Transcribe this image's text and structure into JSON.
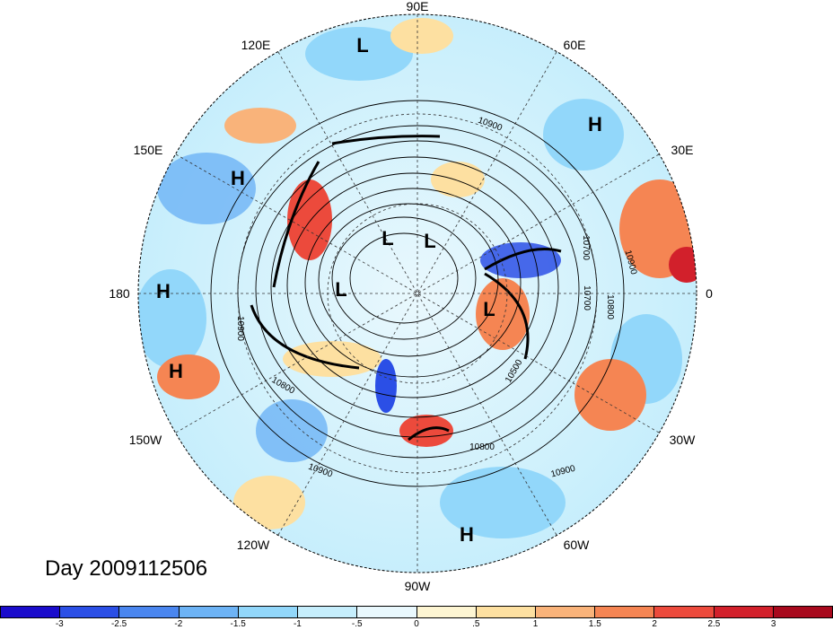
{
  "title": "Day 2009112506",
  "longitude_labels": [
    {
      "text": "90E",
      "key": "top"
    },
    {
      "text": "120E",
      "key": "tl1"
    },
    {
      "text": "60E",
      "key": "tr1"
    },
    {
      "text": "150E",
      "key": "tl2"
    },
    {
      "text": "30E",
      "key": "tr2"
    },
    {
      "text": "180",
      "key": "left"
    },
    {
      "text": "0",
      "key": "right"
    },
    {
      "text": "150W",
      "key": "bl2"
    },
    {
      "text": "30W",
      "key": "br2"
    },
    {
      "text": "120W",
      "key": "bl1"
    },
    {
      "text": "60W",
      "key": "br1"
    },
    {
      "text": "90W",
      "key": "bottom"
    }
  ],
  "pressure_centers": [
    {
      "type": "L",
      "key": "l1"
    },
    {
      "type": "H",
      "key": "h1"
    },
    {
      "type": "H",
      "key": "h2"
    },
    {
      "type": "L",
      "key": "l2"
    },
    {
      "type": "L",
      "key": "l3"
    },
    {
      "type": "H",
      "key": "h3"
    },
    {
      "type": "L",
      "key": "l4"
    },
    {
      "type": "L",
      "key": "l5"
    },
    {
      "type": "H",
      "key": "h4"
    },
    {
      "type": "H",
      "key": "h5"
    }
  ],
  "contour_labels": [
    {
      "text": "10900",
      "key": "c1"
    },
    {
      "text": "10700",
      "key": "c2"
    },
    {
      "text": "10900",
      "key": "c3"
    },
    {
      "text": "10700",
      "key": "c4"
    },
    {
      "text": "10800",
      "key": "c5"
    },
    {
      "text": "10500",
      "key": "c6"
    },
    {
      "text": "10900",
      "key": "c7"
    },
    {
      "text": "10800",
      "key": "c8"
    },
    {
      "text": "10800",
      "key": "c9"
    },
    {
      "text": "10900",
      "key": "c10"
    },
    {
      "text": "10900",
      "key": "c11"
    }
  ],
  "colorbar": {
    "colors": [
      "#1a0ccc",
      "#2b4fe6",
      "#4a86ef",
      "#6db3f5",
      "#92d7fa",
      "#c6eefc",
      "#e9f8fd",
      "#fdf5d2",
      "#fde0a1",
      "#f9b37a",
      "#f58553",
      "#ec4a3c",
      "#d2202b",
      "#a8091d"
    ],
    "ticks": [
      "-3",
      "-2.5",
      "-2",
      "-1.5",
      "-1",
      "-.5",
      "0",
      ".5",
      "1",
      "1.5",
      "2",
      "2.5",
      "3"
    ]
  }
}
